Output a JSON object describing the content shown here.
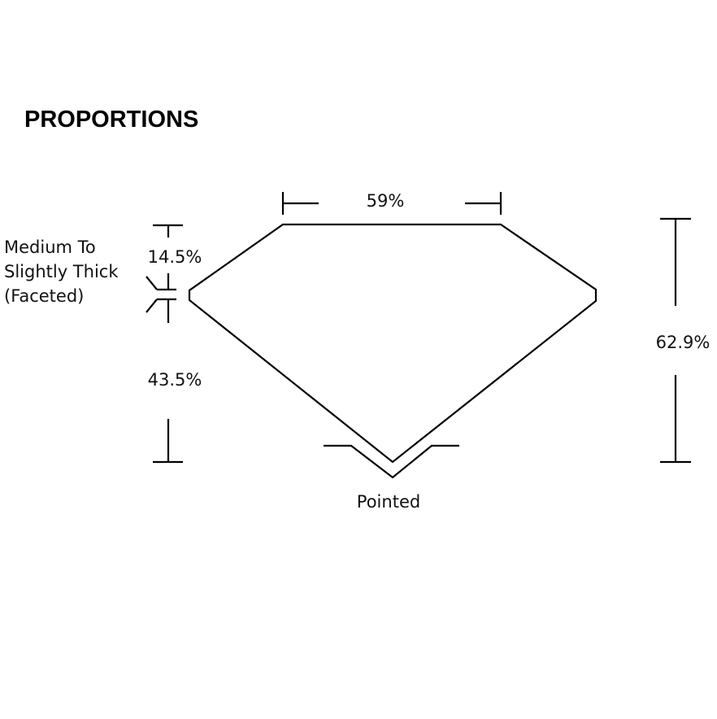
{
  "title": "PROPORTIONS",
  "labels": {
    "table": "59%",
    "crown": "14.5%",
    "pavilion": "43.5%",
    "depth": "62.9%",
    "girdle": [
      "Medium To",
      "Slightly Thick",
      "(Faceted)"
    ],
    "culet": "Pointed"
  },
  "colors": {
    "line": "#000000",
    "background": "#ffffff"
  }
}
